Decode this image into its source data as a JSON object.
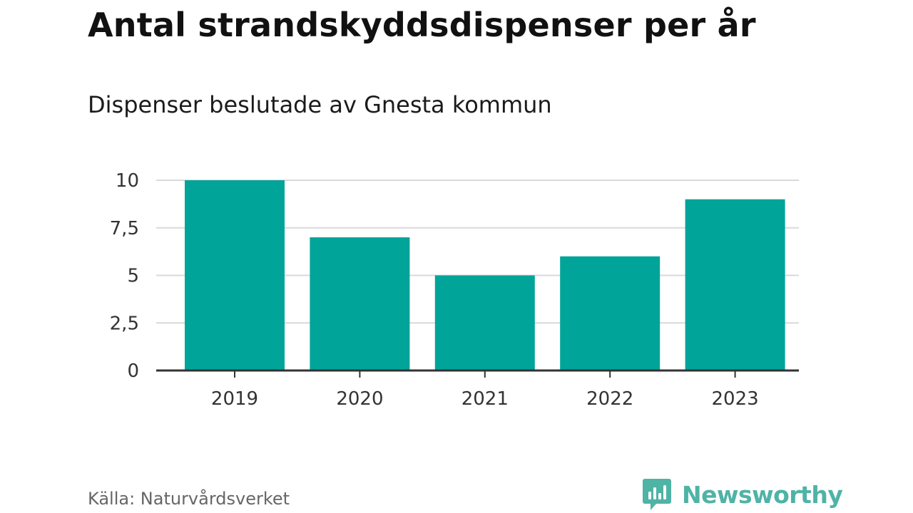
{
  "chart_data": {
    "type": "bar",
    "title": "Antal strandskyddsdispenser per år",
    "subtitle": "Dispenser beslutade av Gnesta kommun",
    "categories": [
      "2019",
      "2020",
      "2021",
      "2022",
      "2023"
    ],
    "values": [
      10,
      7,
      5,
      6,
      9
    ],
    "xlabel": "",
    "ylabel": "",
    "ylim": [
      0,
      10
    ],
    "yticks": [
      0,
      2.5,
      5,
      7.5,
      10
    ],
    "ytick_labels": [
      "0",
      "2,5",
      "5",
      "7,5",
      "10"
    ],
    "grid": true,
    "bar_color": "#00a499"
  },
  "source": "Källa: Naturvårdsverket",
  "brand": {
    "name": "Newsworthy",
    "icon": "newsworthy-logo-icon",
    "color": "#4fb3a6"
  }
}
